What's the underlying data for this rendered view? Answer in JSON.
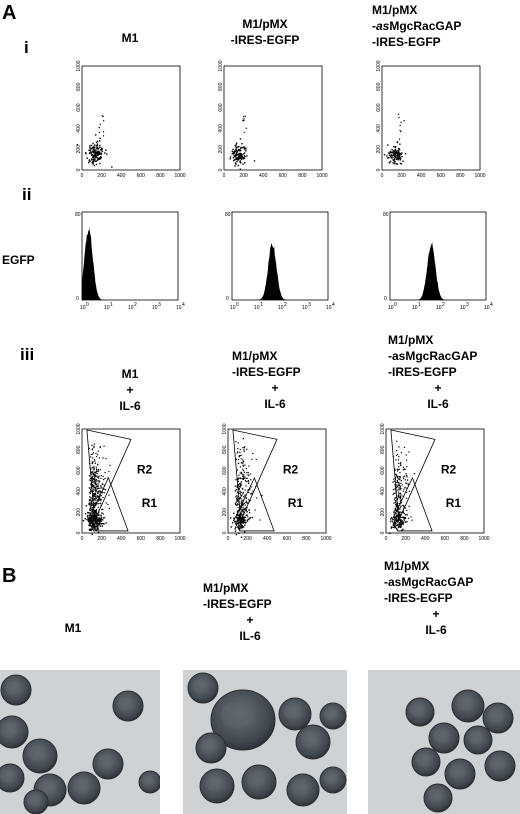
{
  "panel_a": {
    "letter": "A",
    "rows": {
      "i": "i",
      "ii": "ii",
      "iii": "iii"
    },
    "egfp_label": "EGFP",
    "columns": [
      {
        "lines": [
          "M1"
        ]
      },
      {
        "lines": [
          "M1/pMX",
          "-IRES-EGFP"
        ]
      },
      {
        "lines_rich": [
          [
            "M1/pMX",
            ""
          ],
          [
            "-",
            "as",
            "MgcRacGAP"
          ],
          [
            "-IRES-EGFP",
            ""
          ]
        ]
      }
    ],
    "row_iii_columns": [
      {
        "lines": [
          "M1",
          "+",
          "IL-6"
        ]
      },
      {
        "lines": [
          "M1/pMX",
          "-IRES-EGFP",
          "+",
          "IL-6"
        ]
      },
      {
        "lines": [
          "M1/pMX",
          "-asMgcRacGAP",
          "-IRES-EGFP",
          "+",
          "IL-6"
        ]
      }
    ],
    "scatter_ticks": [
      "0",
      "200",
      "400",
      "600",
      "800",
      "1000"
    ],
    "hist_y_ticks": [
      "0",
      "80"
    ],
    "hist_x_ticks": [
      "10",
      "10",
      "10",
      "10",
      "10"
    ],
    "hist_x_exponents": [
      "0",
      "1",
      "2",
      "3",
      "4"
    ],
    "gates": [
      "R2",
      "R1"
    ]
  },
  "panel_b": {
    "letter": "B",
    "col1": [
      "M1"
    ],
    "col2": [
      "M1/pMX",
      "-IRES-EGFP",
      "+",
      "IL-6"
    ],
    "col3": [
      "M1/pMX",
      "-asMgcRacGAP",
      "-IRES-EGFP",
      "+",
      "IL-6"
    ]
  },
  "colors": {
    "stain": "#4a5158",
    "background": "#cfd2d5"
  }
}
